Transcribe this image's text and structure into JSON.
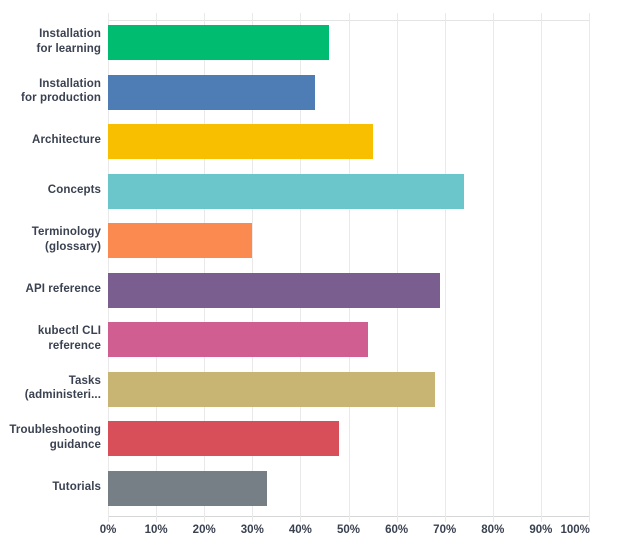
{
  "chart_data": {
    "type": "bar",
    "orientation": "horizontal",
    "title": "",
    "categories": [
      "Installation for learning",
      "Installation for production",
      "Architecture",
      "Concepts",
      "Terminology (glossary)",
      "API reference",
      "kubectl CLI reference",
      "Tasks (administeri...",
      "Troubleshooting guidance",
      "Tutorials"
    ],
    "category_label_lines": [
      [
        "Installation",
        "for learning"
      ],
      [
        "Installation",
        "for production"
      ],
      [
        "Architecture"
      ],
      [
        "Concepts"
      ],
      [
        "Terminology",
        "(glossary)"
      ],
      [
        "API reference"
      ],
      [
        "kubectl CLI",
        "reference"
      ],
      [
        "Tasks",
        "(administeri..."
      ],
      [
        "Troubleshooting",
        "guidance"
      ],
      [
        "Tutorials"
      ]
    ],
    "values": [
      46,
      43,
      55,
      74,
      30,
      69,
      54,
      68,
      48,
      33
    ],
    "unit": "%",
    "bar_colors": [
      "#00BC70",
      "#4E7CB4",
      "#F8BE00",
      "#6AC6CB",
      "#FB8A50",
      "#7B5E90",
      "#D15E90",
      "#C8B473",
      "#D94F59",
      "#767F86"
    ],
    "xlim": [
      0,
      100
    ],
    "x_tick_labels": [
      "0%",
      "10%",
      "20%",
      "30%",
      "40%",
      "50%",
      "60%",
      "70%",
      "80%",
      "90%",
      "100%"
    ],
    "x_tick_step": 10,
    "grid": "vertical",
    "legend": "none"
  },
  "colors": {
    "text": "#3A4150",
    "gridline": "#E9E9E9",
    "axis_line": "#D6D6D6",
    "background": "#FFFFFF"
  }
}
